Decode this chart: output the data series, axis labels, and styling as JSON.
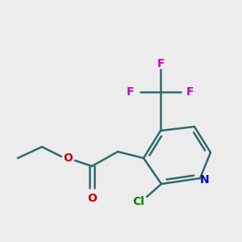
{
  "bg_color": "#ececec",
  "line_color": "#2d6b6b",
  "bond_width": 1.8,
  "colors": {
    "N": "#0000cc",
    "O": "#cc0000",
    "Cl": "#008000",
    "F": "#cc00cc"
  },
  "font_size_atom": 10
}
